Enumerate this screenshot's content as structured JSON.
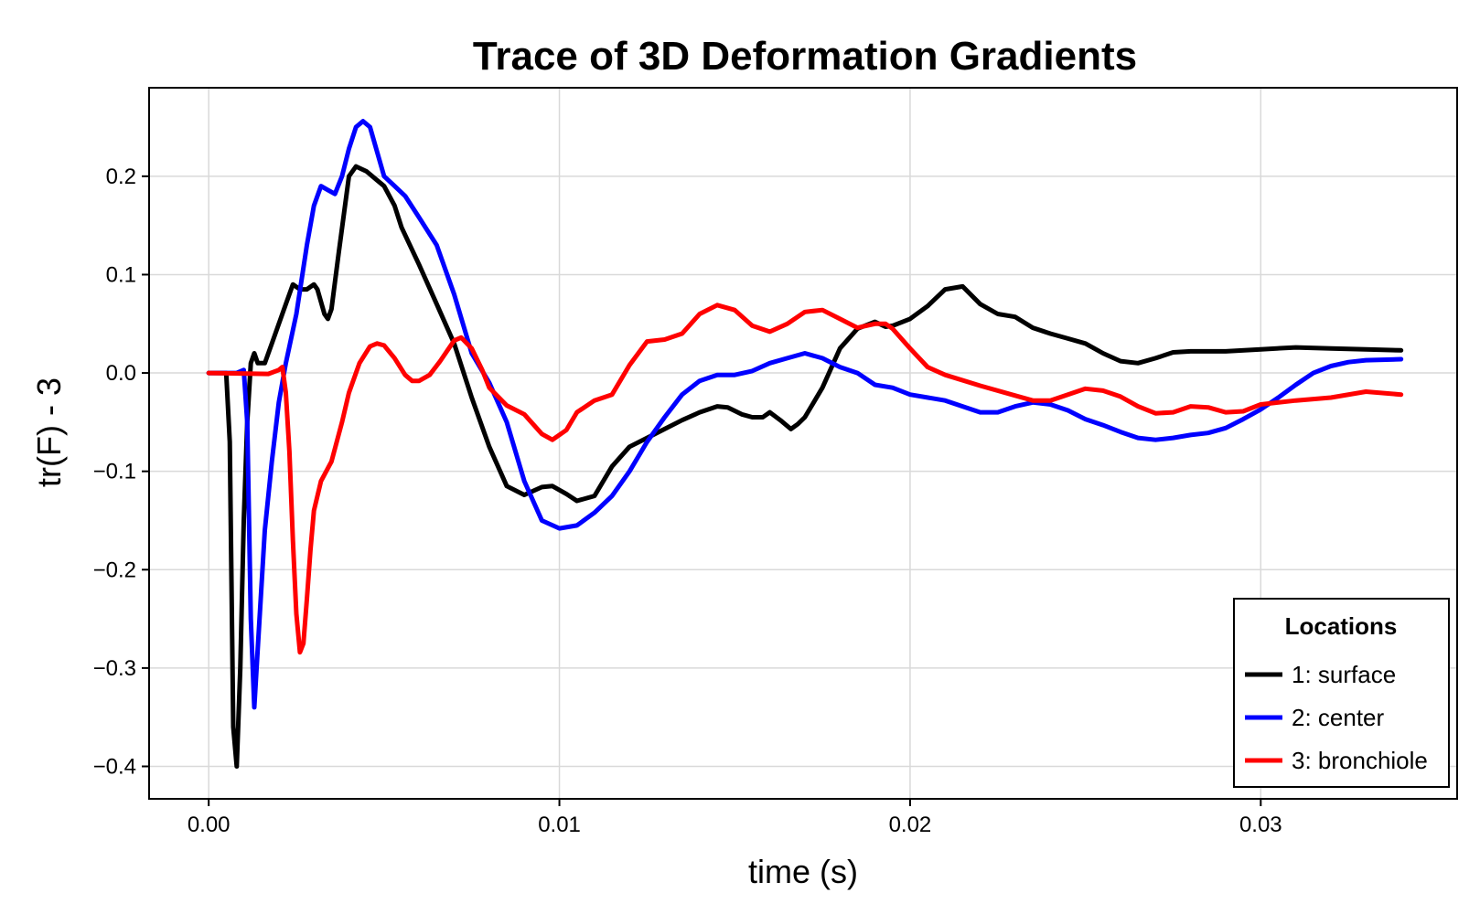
{
  "chart_data": {
    "type": "line",
    "title": "Trace of 3D Deformation Gradients",
    "xlabel": "time (s)",
    "ylabel": "tr(F) - 3",
    "xlim": [
      -0.0017,
      0.0356
    ],
    "ylim": [
      -0.433,
      0.29
    ],
    "xticks": [
      0.0,
      0.01,
      0.02,
      0.03
    ],
    "xtick_labels": [
      "0.00",
      "0.01",
      "0.02",
      "0.03"
    ],
    "yticks": [
      -0.4,
      -0.3,
      -0.2,
      -0.1,
      0.0,
      0.1,
      0.2
    ],
    "ytick_labels": [
      "−0.4",
      "−0.3",
      "−0.2",
      "−0.1",
      "0.0",
      "0.1",
      "0.2"
    ],
    "grid": true,
    "legend": {
      "title": "Locations",
      "position": "bottom-right"
    },
    "series": [
      {
        "name": "1: surface",
        "color": "#000000",
        "points": [
          [
            0.0,
            0.0
          ],
          [
            0.0005,
            0.0
          ],
          [
            0.0006,
            -0.07
          ],
          [
            0.0007,
            -0.36
          ],
          [
            0.0008,
            -0.4
          ],
          [
            0.0009,
            -0.3
          ],
          [
            0.001,
            -0.15
          ],
          [
            0.0011,
            -0.05
          ],
          [
            0.0012,
            0.01
          ],
          [
            0.0013,
            0.02
          ],
          [
            0.0014,
            0.01
          ],
          [
            0.0016,
            0.01
          ],
          [
            0.0018,
            0.03
          ],
          [
            0.0022,
            0.07
          ],
          [
            0.0024,
            0.09
          ],
          [
            0.0026,
            0.085
          ],
          [
            0.0028,
            0.085
          ],
          [
            0.003,
            0.09
          ],
          [
            0.0031,
            0.085
          ],
          [
            0.0033,
            0.06
          ],
          [
            0.0034,
            0.055
          ],
          [
            0.0035,
            0.065
          ],
          [
            0.0037,
            0.12
          ],
          [
            0.004,
            0.2
          ],
          [
            0.0042,
            0.21
          ],
          [
            0.0045,
            0.205
          ],
          [
            0.0048,
            0.196
          ],
          [
            0.005,
            0.19
          ],
          [
            0.0053,
            0.17
          ],
          [
            0.0055,
            0.148
          ],
          [
            0.006,
            0.11
          ],
          [
            0.0065,
            0.07
          ],
          [
            0.007,
            0.03
          ],
          [
            0.0075,
            -0.025
          ],
          [
            0.008,
            -0.075
          ],
          [
            0.0085,
            -0.115
          ],
          [
            0.009,
            -0.124
          ],
          [
            0.0095,
            -0.116
          ],
          [
            0.0098,
            -0.115
          ],
          [
            0.0102,
            -0.123
          ],
          [
            0.0105,
            -0.13
          ],
          [
            0.011,
            -0.125
          ],
          [
            0.0115,
            -0.095
          ],
          [
            0.012,
            -0.075
          ],
          [
            0.0125,
            -0.066
          ],
          [
            0.013,
            -0.057
          ],
          [
            0.0135,
            -0.048
          ],
          [
            0.014,
            -0.04
          ],
          [
            0.0145,
            -0.034
          ],
          [
            0.0148,
            -0.035
          ],
          [
            0.0152,
            -0.042
          ],
          [
            0.0155,
            -0.045
          ],
          [
            0.0158,
            -0.045
          ],
          [
            0.016,
            -0.04
          ],
          [
            0.0163,
            -0.048
          ],
          [
            0.0166,
            -0.057
          ],
          [
            0.0168,
            -0.052
          ],
          [
            0.017,
            -0.045
          ],
          [
            0.0175,
            -0.015
          ],
          [
            0.018,
            0.025
          ],
          [
            0.0185,
            0.045
          ],
          [
            0.019,
            0.052
          ],
          [
            0.0193,
            0.047
          ],
          [
            0.0195,
            0.048
          ],
          [
            0.02,
            0.055
          ],
          [
            0.0205,
            0.068
          ],
          [
            0.021,
            0.085
          ],
          [
            0.0215,
            0.088
          ],
          [
            0.022,
            0.07
          ],
          [
            0.0225,
            0.06
          ],
          [
            0.023,
            0.057
          ],
          [
            0.0235,
            0.046
          ],
          [
            0.024,
            0.04
          ],
          [
            0.0245,
            0.035
          ],
          [
            0.025,
            0.03
          ],
          [
            0.0255,
            0.02
          ],
          [
            0.026,
            0.012
          ],
          [
            0.0265,
            0.01
          ],
          [
            0.027,
            0.015
          ],
          [
            0.0275,
            0.021
          ],
          [
            0.028,
            0.022
          ],
          [
            0.029,
            0.022
          ],
          [
            0.03,
            0.024
          ],
          [
            0.031,
            0.026
          ],
          [
            0.032,
            0.025
          ],
          [
            0.033,
            0.024
          ],
          [
            0.034,
            0.023
          ]
        ]
      },
      {
        "name": "2: center",
        "color": "#0000ff",
        "points": [
          [
            0.0,
            0.0
          ],
          [
            0.0008,
            0.0
          ],
          [
            0.001,
            0.003
          ],
          [
            0.0011,
            -0.05
          ],
          [
            0.0012,
            -0.25
          ],
          [
            0.0013,
            -0.34
          ],
          [
            0.0014,
            -0.28
          ],
          [
            0.0016,
            -0.16
          ],
          [
            0.0018,
            -0.09
          ],
          [
            0.002,
            -0.03
          ],
          [
            0.0022,
            0.01
          ],
          [
            0.0025,
            0.06
          ],
          [
            0.0028,
            0.13
          ],
          [
            0.003,
            0.17
          ],
          [
            0.0032,
            0.19
          ],
          [
            0.0034,
            0.186
          ],
          [
            0.0036,
            0.182
          ],
          [
            0.0038,
            0.2
          ],
          [
            0.004,
            0.228
          ],
          [
            0.0042,
            0.25
          ],
          [
            0.0044,
            0.256
          ],
          [
            0.0046,
            0.25
          ],
          [
            0.0048,
            0.225
          ],
          [
            0.005,
            0.2
          ],
          [
            0.0053,
            0.19
          ],
          [
            0.0056,
            0.18
          ],
          [
            0.006,
            0.158
          ],
          [
            0.0065,
            0.13
          ],
          [
            0.007,
            0.08
          ],
          [
            0.0075,
            0.02
          ],
          [
            0.008,
            -0.01
          ],
          [
            0.0085,
            -0.05
          ],
          [
            0.009,
            -0.11
          ],
          [
            0.0095,
            -0.15
          ],
          [
            0.01,
            -0.158
          ],
          [
            0.0105,
            -0.155
          ],
          [
            0.011,
            -0.142
          ],
          [
            0.0115,
            -0.125
          ],
          [
            0.012,
            -0.1
          ],
          [
            0.0125,
            -0.07
          ],
          [
            0.013,
            -0.045
          ],
          [
            0.0135,
            -0.022
          ],
          [
            0.014,
            -0.008
          ],
          [
            0.0145,
            -0.002
          ],
          [
            0.015,
            -0.002
          ],
          [
            0.0155,
            0.002
          ],
          [
            0.016,
            0.01
          ],
          [
            0.0165,
            0.015
          ],
          [
            0.017,
            0.02
          ],
          [
            0.0175,
            0.015
          ],
          [
            0.018,
            0.006
          ],
          [
            0.0185,
            0.0
          ],
          [
            0.019,
            -0.012
          ],
          [
            0.0195,
            -0.015
          ],
          [
            0.02,
            -0.022
          ],
          [
            0.021,
            -0.028
          ],
          [
            0.022,
            -0.04
          ],
          [
            0.0225,
            -0.04
          ],
          [
            0.023,
            -0.034
          ],
          [
            0.0235,
            -0.03
          ],
          [
            0.024,
            -0.032
          ],
          [
            0.0245,
            -0.038
          ],
          [
            0.025,
            -0.047
          ],
          [
            0.0255,
            -0.053
          ],
          [
            0.026,
            -0.06
          ],
          [
            0.0265,
            -0.066
          ],
          [
            0.027,
            -0.068
          ],
          [
            0.0275,
            -0.066
          ],
          [
            0.028,
            -0.063
          ],
          [
            0.0285,
            -0.061
          ],
          [
            0.029,
            -0.056
          ],
          [
            0.0295,
            -0.047
          ],
          [
            0.03,
            -0.037
          ],
          [
            0.0305,
            -0.025
          ],
          [
            0.031,
            -0.012
          ],
          [
            0.0315,
            0.0
          ],
          [
            0.032,
            0.007
          ],
          [
            0.0325,
            0.011
          ],
          [
            0.033,
            0.013
          ],
          [
            0.034,
            0.014
          ]
        ]
      },
      {
        "name": "3: bronchiole",
        "color": "#ff0000",
        "points": [
          [
            0.0,
            0.0
          ],
          [
            0.0017,
            -0.001
          ],
          [
            0.002,
            0.003
          ],
          [
            0.0021,
            0.006
          ],
          [
            0.0022,
            -0.02
          ],
          [
            0.0023,
            -0.08
          ],
          [
            0.0024,
            -0.17
          ],
          [
            0.0025,
            -0.245
          ],
          [
            0.0026,
            -0.284
          ],
          [
            0.0027,
            -0.275
          ],
          [
            0.0028,
            -0.23
          ],
          [
            0.0029,
            -0.18
          ],
          [
            0.003,
            -0.14
          ],
          [
            0.0032,
            -0.11
          ],
          [
            0.0035,
            -0.09
          ],
          [
            0.0038,
            -0.05
          ],
          [
            0.004,
            -0.02
          ],
          [
            0.0043,
            0.01
          ],
          [
            0.0046,
            0.027
          ],
          [
            0.0048,
            0.03
          ],
          [
            0.005,
            0.028
          ],
          [
            0.0053,
            0.015
          ],
          [
            0.0056,
            -0.002
          ],
          [
            0.0058,
            -0.008
          ],
          [
            0.006,
            -0.008
          ],
          [
            0.0063,
            -0.002
          ],
          [
            0.0066,
            0.012
          ],
          [
            0.007,
            0.033
          ],
          [
            0.0072,
            0.036
          ],
          [
            0.0075,
            0.025
          ],
          [
            0.0078,
            0.003
          ],
          [
            0.008,
            -0.015
          ],
          [
            0.0085,
            -0.033
          ],
          [
            0.009,
            -0.042
          ],
          [
            0.0095,
            -0.062
          ],
          [
            0.0098,
            -0.068
          ],
          [
            0.0102,
            -0.058
          ],
          [
            0.0105,
            -0.04
          ],
          [
            0.011,
            -0.028
          ],
          [
            0.0115,
            -0.022
          ],
          [
            0.012,
            0.008
          ],
          [
            0.0125,
            0.032
          ],
          [
            0.013,
            0.034
          ],
          [
            0.0135,
            0.04
          ],
          [
            0.014,
            0.06
          ],
          [
            0.0145,
            0.069
          ],
          [
            0.015,
            0.064
          ],
          [
            0.0155,
            0.048
          ],
          [
            0.016,
            0.042
          ],
          [
            0.0165,
            0.05
          ],
          [
            0.017,
            0.062
          ],
          [
            0.0175,
            0.064
          ],
          [
            0.018,
            0.055
          ],
          [
            0.0185,
            0.046
          ],
          [
            0.019,
            0.05
          ],
          [
            0.0193,
            0.05
          ],
          [
            0.0195,
            0.045
          ],
          [
            0.02,
            0.025
          ],
          [
            0.0205,
            0.006
          ],
          [
            0.021,
            -0.002
          ],
          [
            0.022,
            -0.013
          ],
          [
            0.023,
            -0.023
          ],
          [
            0.0235,
            -0.028
          ],
          [
            0.024,
            -0.028
          ],
          [
            0.0245,
            -0.022
          ],
          [
            0.025,
            -0.016
          ],
          [
            0.0255,
            -0.018
          ],
          [
            0.026,
            -0.024
          ],
          [
            0.0265,
            -0.034
          ],
          [
            0.027,
            -0.041
          ],
          [
            0.0275,
            -0.04
          ],
          [
            0.028,
            -0.034
          ],
          [
            0.0285,
            -0.035
          ],
          [
            0.029,
            -0.04
          ],
          [
            0.0295,
            -0.039
          ],
          [
            0.03,
            -0.032
          ],
          [
            0.031,
            -0.028
          ],
          [
            0.032,
            -0.025
          ],
          [
            0.033,
            -0.019
          ],
          [
            0.034,
            -0.022
          ]
        ]
      }
    ]
  }
}
